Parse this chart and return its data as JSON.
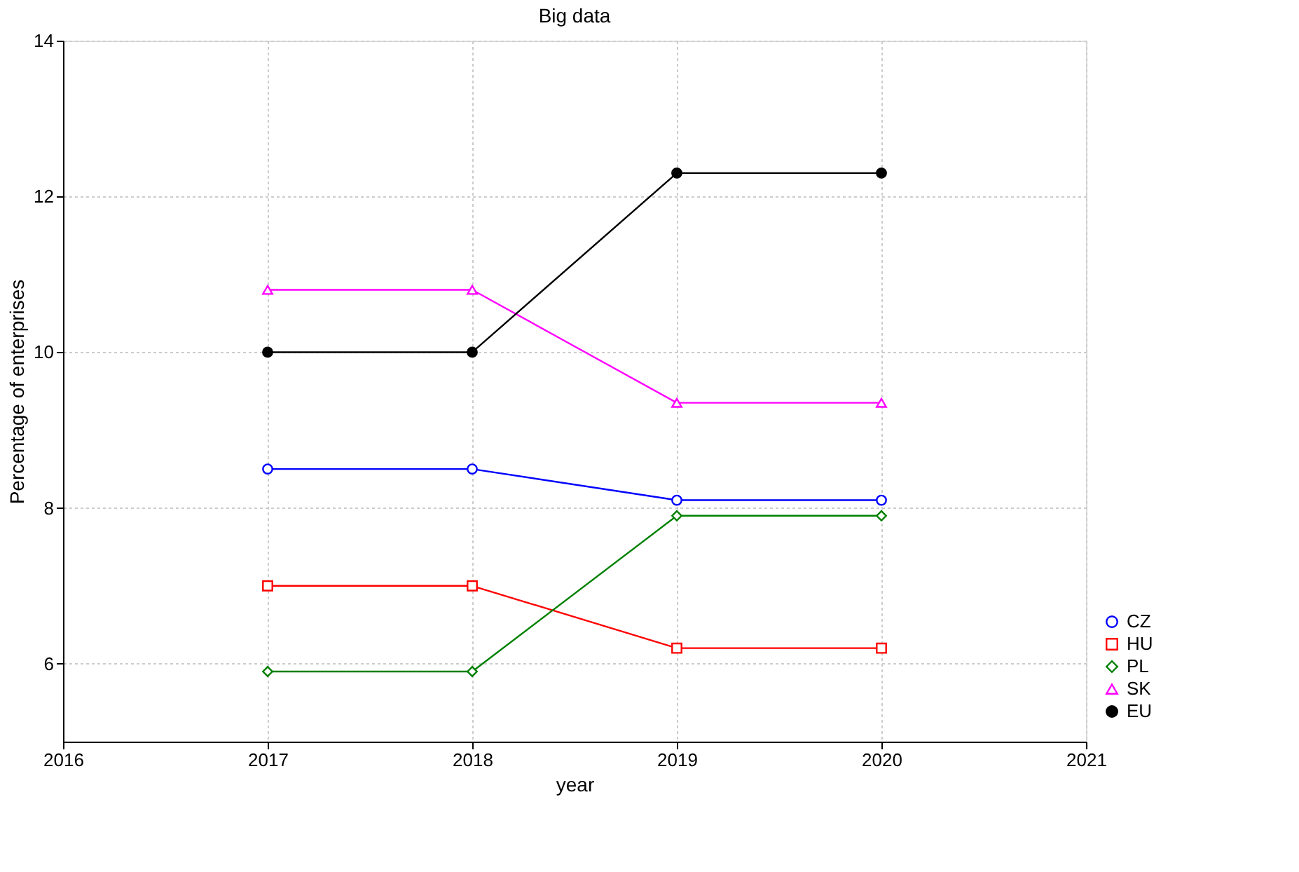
{
  "chart_data": {
    "type": "line",
    "title": "Big data",
    "xlabel": "year",
    "ylabel": "Percentage of enterprises",
    "x": [
      2017,
      2018,
      2019,
      2020
    ],
    "series": [
      {
        "name": "CZ",
        "color": "#0000ff",
        "marker": "circle",
        "values": [
          8.5,
          8.5,
          8.1,
          8.1
        ]
      },
      {
        "name": "HU",
        "color": "#ff0000",
        "marker": "square",
        "values": [
          7.0,
          7.0,
          6.2,
          6.2
        ]
      },
      {
        "name": "PL",
        "color": "#008000",
        "marker": "diamond",
        "values": [
          5.9,
          5.9,
          7.9,
          7.9
        ]
      },
      {
        "name": "SK",
        "color": "#ff00ff",
        "marker": "triangle",
        "values": [
          10.8,
          10.8,
          9.35,
          9.35
        ]
      },
      {
        "name": "EU",
        "color": "#000000",
        "marker": "circle",
        "values": [
          10,
          10,
          12.3,
          12.3
        ]
      }
    ],
    "xlim": [
      2016,
      2021
    ],
    "xticks": [
      2016,
      2017,
      2018,
      2019,
      2020,
      2021
    ],
    "ylim": [
      5,
      14
    ],
    "yticks": [
      6,
      8,
      10,
      12,
      14
    ],
    "grid": true,
    "legend": "bottom right",
    "line_style": "solid"
  }
}
